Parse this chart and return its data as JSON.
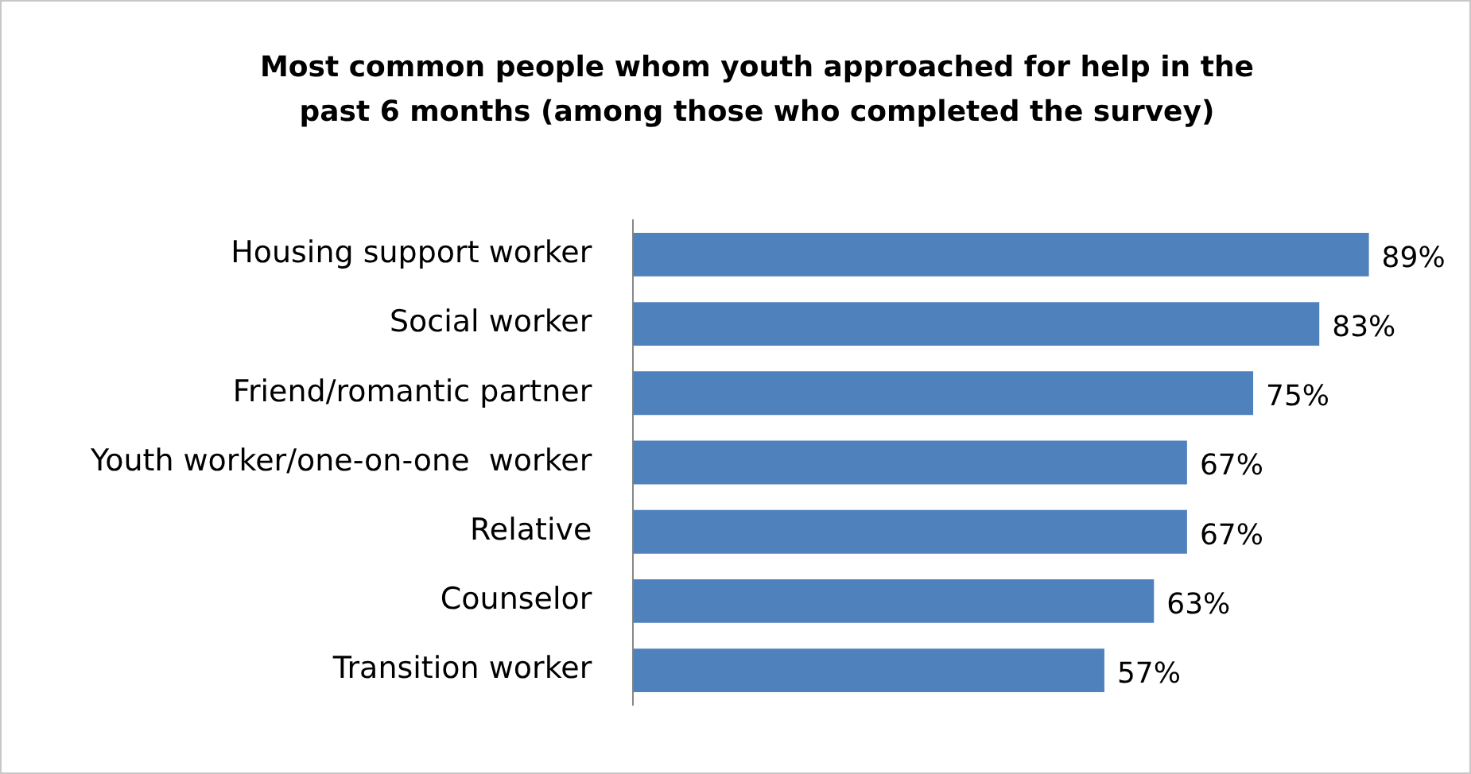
{
  "chart_data": {
    "type": "bar",
    "orientation": "horizontal",
    "title": "Most common people whom youth approached for help in the past 6 months (among those who completed the survey)",
    "categories": [
      "Housing support worker",
      "Social worker",
      "Friend/romantic partner",
      "Youth worker/one-on-one  worker",
      "Relative",
      "Counselor",
      "Transition worker"
    ],
    "values": [
      89,
      83,
      75,
      67,
      67,
      63,
      57
    ],
    "value_labels": [
      "89%",
      "83%",
      "75%",
      "67%",
      "67%",
      "63%",
      "57%"
    ],
    "color": "#4f81bd",
    "grid": false,
    "legend": false,
    "tick_labels": "y"
  }
}
